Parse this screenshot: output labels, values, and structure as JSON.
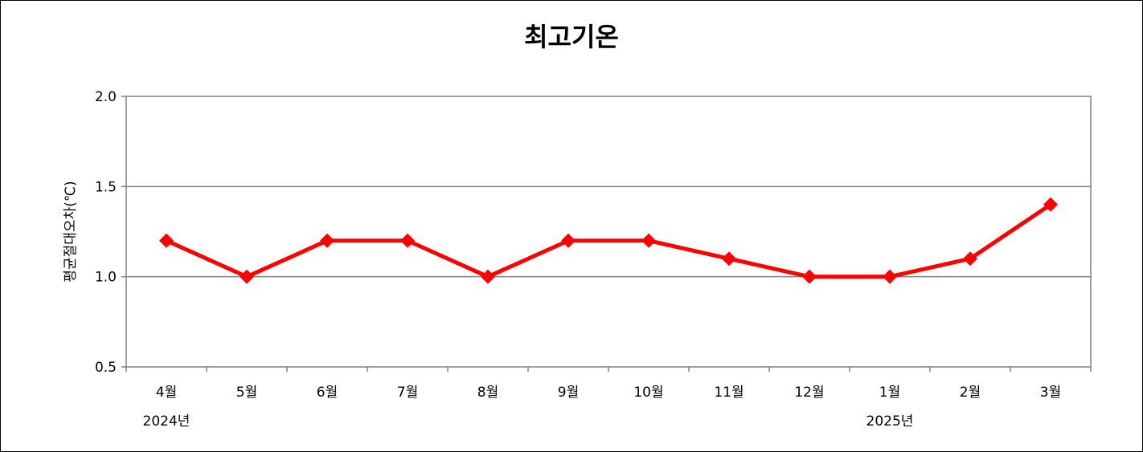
{
  "chart_data": {
    "type": "line",
    "title": "최고기온",
    "ylabel": "평균절대오차(℃)",
    "xlabel": "",
    "ylim": [
      0.5,
      2.0
    ],
    "yticks": [
      "0.5",
      "1.0",
      "1.5",
      "2.0"
    ],
    "categories": [
      "4월",
      "5월",
      "6월",
      "7월",
      "8월",
      "9월",
      "10월",
      "11월",
      "12월",
      "1월",
      "2월",
      "3월"
    ],
    "year_labels": [
      {
        "index": 0,
        "label": "2024년"
      },
      {
        "index": 9,
        "label": "2025년"
      }
    ],
    "series": [
      {
        "values": [
          1.2,
          1.0,
          1.2,
          1.2,
          1.0,
          1.2,
          1.2,
          1.1,
          1.0,
          1.0,
          1.1,
          1.4
        ]
      }
    ],
    "line_color": "#ff0000",
    "grid": true
  }
}
